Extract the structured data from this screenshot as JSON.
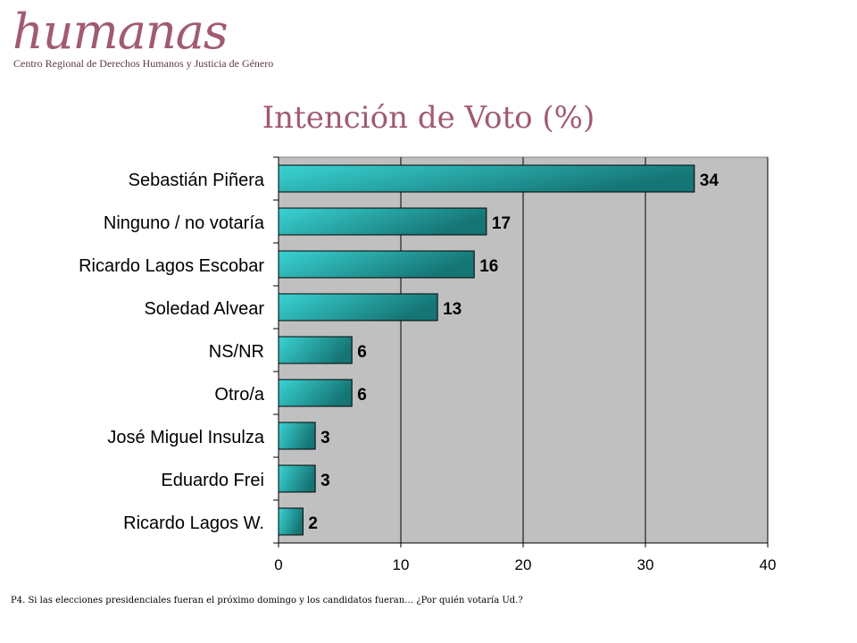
{
  "logo": {
    "name": "humanas",
    "subtitle": "Centro Regional de Derechos Humanos y Justicia de Género"
  },
  "footnote": "P4. Si las elecciones presidenciales fueran el próximo domingo y los candidatos fueran… ¿Por quién votaría Ud.?",
  "colors": {
    "title": "#a15a74",
    "plot_background": "#c0c0c0",
    "bar_light": "#3ad3d3",
    "bar_dark": "#157474"
  },
  "chart_data": {
    "type": "bar",
    "orientation": "horizontal",
    "title": "Intención de Voto (%)",
    "xlabel": "",
    "ylabel": "",
    "categories": [
      "Sebastián Piñera",
      "Ninguno / no votaría",
      "Ricardo Lagos Escobar",
      "Soledad Alvear",
      "NS/NR",
      "Otro/a",
      "José Miguel Insulza",
      "Eduardo Frei",
      "Ricardo Lagos W."
    ],
    "values": [
      34,
      17,
      16,
      13,
      6,
      6,
      3,
      3,
      2
    ],
    "xlim": [
      0,
      40
    ],
    "xticks": [
      0,
      10,
      20,
      30,
      40
    ],
    "grid": "vertical",
    "legend": "none",
    "data_labels": true
  }
}
